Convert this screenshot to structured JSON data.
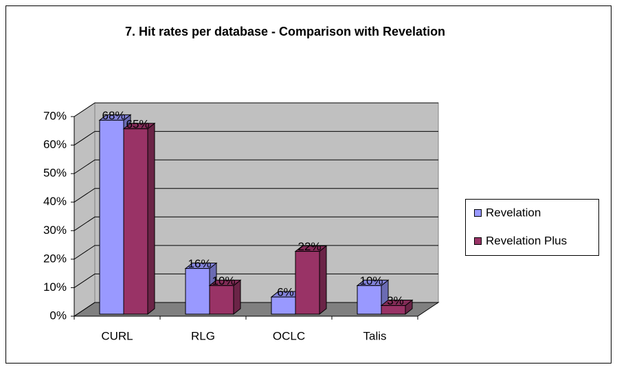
{
  "chart_data": {
    "type": "bar3d",
    "title": "7. Hit rates per database - Comparison with Revelation",
    "categories": [
      "CURL",
      "RLG",
      "OCLC",
      "Talis"
    ],
    "series": [
      {
        "name": "Revelation",
        "color": "#9999ff",
        "values": [
          68,
          16,
          6,
          10
        ],
        "value_labels": [
          "68%",
          "16%",
          "6%",
          "10%"
        ]
      },
      {
        "name": "Revelation Plus",
        "color": "#993366",
        "values": [
          65,
          10,
          22,
          3
        ],
        "value_labels": [
          "65%",
          "10%",
          "22%",
          "3%"
        ]
      }
    ],
    "ylim": [
      0,
      70
    ],
    "yticks": [
      {
        "value": 0,
        "label": "0%"
      },
      {
        "value": 10,
        "label": "10%"
      },
      {
        "value": 20,
        "label": "20%"
      },
      {
        "value": 30,
        "label": "30%"
      },
      {
        "value": 40,
        "label": "40%"
      },
      {
        "value": 50,
        "label": "50%"
      },
      {
        "value": 60,
        "label": "60%"
      },
      {
        "value": 70,
        "label": "70%"
      }
    ],
    "grid": true,
    "legend": "right"
  }
}
